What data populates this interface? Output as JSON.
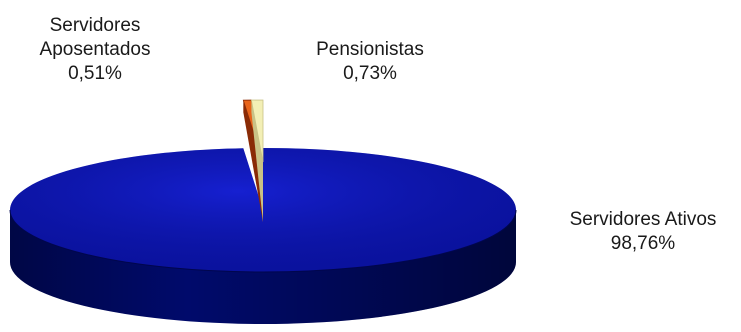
{
  "chart_data": {
    "type": "pie",
    "style": "3d",
    "title": "",
    "series": [
      {
        "values": [
          98.76,
          0.51,
          0.73
        ]
      }
    ],
    "categories": [
      "Servidores Ativos",
      "Servidores Aposentados",
      "Pensionistas"
    ],
    "labels": [
      {
        "name_lines": [
          "Servidores Ativos"
        ],
        "value_text": "98,76%"
      },
      {
        "name_lines": [
          "Servidores",
          "Aposentados"
        ],
        "value_text": "0,51%"
      },
      {
        "name_lines": [
          "Pensionistas"
        ],
        "value_text": "0,73%"
      }
    ],
    "colors": {
      "ativos_top": "#0b14b8",
      "ativos_side": "#000a6b",
      "aposentados_top": "#e8641a",
      "aposentados_side": "#8a2b06",
      "pensionistas_top": "#f3efb5",
      "pensionistas_side": "#c9c286"
    },
    "legend": "none",
    "grid": false
  }
}
